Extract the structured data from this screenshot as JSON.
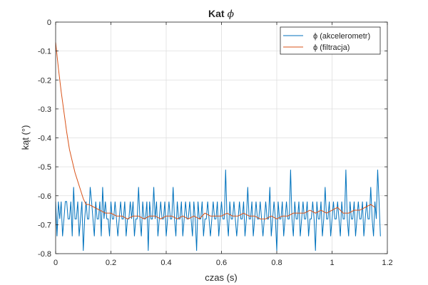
{
  "chart_data": {
    "type": "line",
    "title_text": "Kat ",
    "title_symbol": "ϕ",
    "xlabel": "czas (s)",
    "ylabel": "kąt (°)",
    "xlim": [
      0,
      1.2
    ],
    "ylim": [
      -0.8,
      0
    ],
    "xticks": [
      0,
      0.2,
      0.4,
      0.6,
      0.8,
      1,
      1.2
    ],
    "xtick_labels": [
      "0",
      "0.2",
      "0.4",
      "0.6",
      "0.8",
      "1",
      "1.2"
    ],
    "yticks": [
      0,
      -0.1,
      -0.2,
      -0.3,
      -0.4,
      -0.5,
      -0.6,
      -0.7,
      -0.8
    ],
    "ytick_labels": [
      "0",
      "-0.1",
      "-0.2",
      "-0.3",
      "-0.4",
      "-0.5",
      "-0.6",
      "-0.7",
      "-0.8"
    ],
    "grid": true,
    "legend_position": "top-right",
    "series": [
      {
        "name": "ϕ (akcelerometr)",
        "color": "#0072BD",
        "x_start": 0,
        "x_step": 0.005,
        "y": [
          -0.62,
          -0.74,
          -0.62,
          -0.68,
          -0.62,
          -0.74,
          -0.68,
          -0.62,
          -0.62,
          -0.68,
          -0.68,
          -0.62,
          -0.74,
          -0.57,
          -0.68,
          -0.68,
          -0.62,
          -0.74,
          -0.68,
          -0.62,
          -0.79,
          -0.68,
          -0.62,
          -0.68,
          -0.68,
          -0.57,
          -0.62,
          -0.68,
          -0.74,
          -0.62,
          -0.68,
          -0.68,
          -0.62,
          -0.74,
          -0.57,
          -0.68,
          -0.62,
          -0.68,
          -0.68,
          -0.74,
          -0.62,
          -0.68,
          -0.68,
          -0.62,
          -0.68,
          -0.74,
          -0.68,
          -0.62,
          -0.68,
          -0.68,
          -0.62,
          -0.74,
          -0.68,
          -0.68,
          -0.62,
          -0.68,
          -0.62,
          -0.74,
          -0.68,
          -0.68,
          -0.57,
          -0.68,
          -0.74,
          -0.62,
          -0.68,
          -0.68,
          -0.62,
          -0.79,
          -0.62,
          -0.68,
          -0.68,
          -0.57,
          -0.68,
          -0.62,
          -0.74,
          -0.68,
          -0.62,
          -0.68,
          -0.68,
          -0.62,
          -0.74,
          -0.68,
          -0.62,
          -0.68,
          -0.68,
          -0.57,
          -0.68,
          -0.74,
          -0.62,
          -0.68,
          -0.68,
          -0.62,
          -0.74,
          -0.68,
          -0.62,
          -0.68,
          -0.68,
          -0.62,
          -0.68,
          -0.74,
          -0.62,
          -0.68,
          -0.79,
          -0.62,
          -0.68,
          -0.68,
          -0.62,
          -0.74,
          -0.68,
          -0.68,
          -0.62,
          -0.68,
          -0.74,
          -0.68,
          -0.62,
          -0.68,
          -0.68,
          -0.62,
          -0.74,
          -0.68,
          -0.62,
          -0.68,
          -0.68,
          -0.51,
          -0.68,
          -0.74,
          -0.62,
          -0.68,
          -0.68,
          -0.62,
          -0.68,
          -0.74,
          -0.68,
          -0.62,
          -0.68,
          -0.68,
          -0.62,
          -0.74,
          -0.68,
          -0.57,
          -0.68,
          -0.68,
          -0.62,
          -0.74,
          -0.68,
          -0.62,
          -0.68,
          -0.68,
          -0.62,
          -0.68,
          -0.74,
          -0.68,
          -0.62,
          -0.68,
          -0.68,
          -0.57,
          -0.74,
          -0.68,
          -0.62,
          -0.68,
          -0.79,
          -0.62,
          -0.68,
          -0.68,
          -0.62,
          -0.74,
          -0.68,
          -0.62,
          -0.68,
          -0.68,
          -0.51,
          -0.68,
          -0.74,
          -0.62,
          -0.68,
          -0.68,
          -0.62,
          -0.74,
          -0.68,
          -0.62,
          -0.68,
          -0.68,
          -0.62,
          -0.74,
          -0.68,
          -0.68,
          -0.62,
          -0.68,
          -0.79,
          -0.62,
          -0.68,
          -0.68,
          -0.62,
          -0.74,
          -0.68,
          -0.57,
          -0.68,
          -0.68,
          -0.62,
          -0.74,
          -0.68,
          -0.62,
          -0.68,
          -0.68,
          -0.62,
          -0.68,
          -0.74,
          -0.62,
          -0.68,
          -0.68,
          -0.51,
          -0.68,
          -0.74,
          -0.62,
          -0.68,
          -0.68,
          -0.62,
          -0.74,
          -0.68,
          -0.62,
          -0.68,
          -0.68,
          -0.62,
          -0.74,
          -0.68,
          -0.62,
          -0.68,
          -0.68,
          -0.57,
          -0.68,
          -0.74,
          -0.62,
          -0.68,
          -0.51,
          -0.62,
          -0.74
        ],
        "smooth": false
      },
      {
        "name": "ϕ (filtracja)",
        "color": "#D95319",
        "x": [
          0,
          0.01,
          0.02,
          0.03,
          0.04,
          0.05,
          0.06,
          0.07,
          0.08,
          0.09,
          0.1,
          0.11,
          0.12,
          0.14,
          0.16,
          0.18,
          0.2,
          0.22,
          0.24,
          0.26,
          0.28,
          0.3,
          0.32,
          0.34,
          0.36,
          0.38,
          0.4,
          0.42,
          0.44,
          0.46,
          0.48,
          0.5,
          0.52,
          0.54,
          0.56,
          0.58,
          0.6,
          0.62,
          0.64,
          0.66,
          0.68,
          0.7,
          0.72,
          0.74,
          0.76,
          0.78,
          0.8,
          0.82,
          0.84,
          0.86,
          0.88,
          0.9,
          0.92,
          0.94,
          0.96,
          0.98,
          1,
          1.02,
          1.04,
          1.06,
          1.08,
          1.1,
          1.12,
          1.14,
          1.155
        ],
        "y": [
          -0.07,
          -0.16,
          -0.24,
          -0.31,
          -0.38,
          -0.44,
          -0.48,
          -0.52,
          -0.55,
          -0.58,
          -0.61,
          -0.63,
          -0.63,
          -0.64,
          -0.65,
          -0.66,
          -0.66,
          -0.67,
          -0.67,
          -0.68,
          -0.67,
          -0.67,
          -0.68,
          -0.67,
          -0.67,
          -0.68,
          -0.67,
          -0.67,
          -0.68,
          -0.67,
          -0.68,
          -0.67,
          -0.68,
          -0.66,
          -0.67,
          -0.67,
          -0.67,
          -0.66,
          -0.67,
          -0.67,
          -0.66,
          -0.67,
          -0.67,
          -0.68,
          -0.68,
          -0.67,
          -0.68,
          -0.67,
          -0.67,
          -0.66,
          -0.66,
          -0.66,
          -0.65,
          -0.66,
          -0.65,
          -0.66,
          -0.65,
          -0.64,
          -0.66,
          -0.66,
          -0.65,
          -0.65,
          -0.64,
          -0.63,
          -0.64
        ]
      }
    ]
  }
}
